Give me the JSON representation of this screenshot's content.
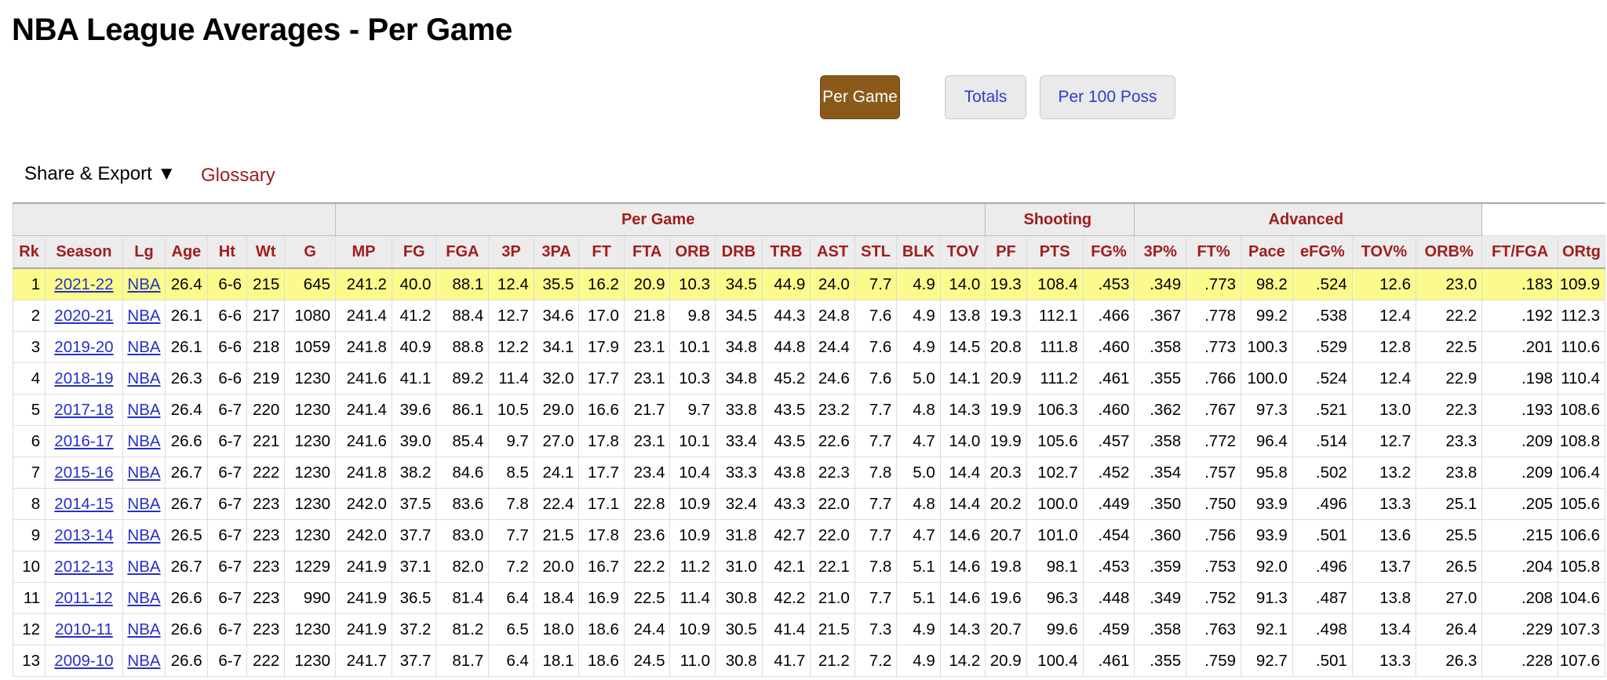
{
  "page": {
    "title": "NBA League Averages - Per Game"
  },
  "view_switch": {
    "per_game": "Per Game",
    "totals": "Totals",
    "per_100": "Per 100 Poss",
    "active": "per_game"
  },
  "toolbar": {
    "share_export": "Share & Export ▼",
    "glossary": "Glossary"
  },
  "colors": {
    "header_text": "#a11d1d",
    "active_button": "#8a5a1b",
    "link": "#2530c8",
    "highlight_row": "#fbfb8c"
  },
  "table": {
    "groups": [
      {
        "label": "",
        "span": 6
      },
      {
        "label": "",
        "span": 1
      },
      {
        "label": "Per Game",
        "span": 14
      },
      {
        "label": "Shooting",
        "span": 3
      },
      {
        "label": "Advanced",
        "span": 6
      }
    ],
    "columns": [
      "Rk",
      "Season",
      "Lg",
      "Age",
      "Ht",
      "Wt",
      "G",
      "MP",
      "FG",
      "FGA",
      "3P",
      "3PA",
      "FT",
      "FTA",
      "ORB",
      "DRB",
      "TRB",
      "AST",
      "STL",
      "BLK",
      "TOV",
      "PF",
      "PTS",
      "FG%",
      "3P%",
      "FT%",
      "Pace",
      "eFG%",
      "TOV%",
      "ORB%",
      "FT/FGA",
      "ORtg"
    ],
    "rows": [
      [
        "1",
        "2021-22",
        "NBA",
        "26.4",
        "6-6",
        "215",
        "645",
        "241.2",
        "40.0",
        "88.1",
        "12.4",
        "35.5",
        "16.2",
        "20.9",
        "10.3",
        "34.5",
        "44.9",
        "24.0",
        "7.7",
        "4.9",
        "14.0",
        "19.3",
        "108.4",
        ".453",
        ".349",
        ".773",
        "98.2",
        ".524",
        "12.6",
        "23.0",
        ".183",
        "109.9"
      ],
      [
        "2",
        "2020-21",
        "NBA",
        "26.1",
        "6-6",
        "217",
        "1080",
        "241.4",
        "41.2",
        "88.4",
        "12.7",
        "34.6",
        "17.0",
        "21.8",
        "9.8",
        "34.5",
        "44.3",
        "24.8",
        "7.6",
        "4.9",
        "13.8",
        "19.3",
        "112.1",
        ".466",
        ".367",
        ".778",
        "99.2",
        ".538",
        "12.4",
        "22.2",
        ".192",
        "112.3"
      ],
      [
        "3",
        "2019-20",
        "NBA",
        "26.1",
        "6-6",
        "218",
        "1059",
        "241.8",
        "40.9",
        "88.8",
        "12.2",
        "34.1",
        "17.9",
        "23.1",
        "10.1",
        "34.8",
        "44.8",
        "24.4",
        "7.6",
        "4.9",
        "14.5",
        "20.8",
        "111.8",
        ".460",
        ".358",
        ".773",
        "100.3",
        ".529",
        "12.8",
        "22.5",
        ".201",
        "110.6"
      ],
      [
        "4",
        "2018-19",
        "NBA",
        "26.3",
        "6-6",
        "219",
        "1230",
        "241.6",
        "41.1",
        "89.2",
        "11.4",
        "32.0",
        "17.7",
        "23.1",
        "10.3",
        "34.8",
        "45.2",
        "24.6",
        "7.6",
        "5.0",
        "14.1",
        "20.9",
        "111.2",
        ".461",
        ".355",
        ".766",
        "100.0",
        ".524",
        "12.4",
        "22.9",
        ".198",
        "110.4"
      ],
      [
        "5",
        "2017-18",
        "NBA",
        "26.4",
        "6-7",
        "220",
        "1230",
        "241.4",
        "39.6",
        "86.1",
        "10.5",
        "29.0",
        "16.6",
        "21.7",
        "9.7",
        "33.8",
        "43.5",
        "23.2",
        "7.7",
        "4.8",
        "14.3",
        "19.9",
        "106.3",
        ".460",
        ".362",
        ".767",
        "97.3",
        ".521",
        "13.0",
        "22.3",
        ".193",
        "108.6"
      ],
      [
        "6",
        "2016-17",
        "NBA",
        "26.6",
        "6-7",
        "221",
        "1230",
        "241.6",
        "39.0",
        "85.4",
        "9.7",
        "27.0",
        "17.8",
        "23.1",
        "10.1",
        "33.4",
        "43.5",
        "22.6",
        "7.7",
        "4.7",
        "14.0",
        "19.9",
        "105.6",
        ".457",
        ".358",
        ".772",
        "96.4",
        ".514",
        "12.7",
        "23.3",
        ".209",
        "108.8"
      ],
      [
        "7",
        "2015-16",
        "NBA",
        "26.7",
        "6-7",
        "222",
        "1230",
        "241.8",
        "38.2",
        "84.6",
        "8.5",
        "24.1",
        "17.7",
        "23.4",
        "10.4",
        "33.3",
        "43.8",
        "22.3",
        "7.8",
        "5.0",
        "14.4",
        "20.3",
        "102.7",
        ".452",
        ".354",
        ".757",
        "95.8",
        ".502",
        "13.2",
        "23.8",
        ".209",
        "106.4"
      ],
      [
        "8",
        "2014-15",
        "NBA",
        "26.7",
        "6-7",
        "223",
        "1230",
        "242.0",
        "37.5",
        "83.6",
        "7.8",
        "22.4",
        "17.1",
        "22.8",
        "10.9",
        "32.4",
        "43.3",
        "22.0",
        "7.7",
        "4.8",
        "14.4",
        "20.2",
        "100.0",
        ".449",
        ".350",
        ".750",
        "93.9",
        ".496",
        "13.3",
        "25.1",
        ".205",
        "105.6"
      ],
      [
        "9",
        "2013-14",
        "NBA",
        "26.5",
        "6-7",
        "223",
        "1230",
        "242.0",
        "37.7",
        "83.0",
        "7.7",
        "21.5",
        "17.8",
        "23.6",
        "10.9",
        "31.8",
        "42.7",
        "22.0",
        "7.7",
        "4.7",
        "14.6",
        "20.7",
        "101.0",
        ".454",
        ".360",
        ".756",
        "93.9",
        ".501",
        "13.6",
        "25.5",
        ".215",
        "106.6"
      ],
      [
        "10",
        "2012-13",
        "NBA",
        "26.7",
        "6-7",
        "223",
        "1229",
        "241.9",
        "37.1",
        "82.0",
        "7.2",
        "20.0",
        "16.7",
        "22.2",
        "11.2",
        "31.0",
        "42.1",
        "22.1",
        "7.8",
        "5.1",
        "14.6",
        "19.8",
        "98.1",
        ".453",
        ".359",
        ".753",
        "92.0",
        ".496",
        "13.7",
        "26.5",
        ".204",
        "105.8"
      ],
      [
        "11",
        "2011-12",
        "NBA",
        "26.6",
        "6-7",
        "223",
        "990",
        "241.9",
        "36.5",
        "81.4",
        "6.4",
        "18.4",
        "16.9",
        "22.5",
        "11.4",
        "30.8",
        "42.2",
        "21.0",
        "7.7",
        "5.1",
        "14.6",
        "19.6",
        "96.3",
        ".448",
        ".349",
        ".752",
        "91.3",
        ".487",
        "13.8",
        "27.0",
        ".208",
        "104.6"
      ],
      [
        "12",
        "2010-11",
        "NBA",
        "26.6",
        "6-7",
        "223",
        "1230",
        "241.9",
        "37.2",
        "81.2",
        "6.5",
        "18.0",
        "18.6",
        "24.4",
        "10.9",
        "30.5",
        "41.4",
        "21.5",
        "7.3",
        "4.9",
        "14.3",
        "20.7",
        "99.6",
        ".459",
        ".358",
        ".763",
        "92.1",
        ".498",
        "13.4",
        "26.4",
        ".229",
        "107.3"
      ],
      [
        "13",
        "2009-10",
        "NBA",
        "26.6",
        "6-7",
        "222",
        "1230",
        "241.7",
        "37.7",
        "81.7",
        "6.4",
        "18.1",
        "18.6",
        "24.5",
        "11.0",
        "30.8",
        "41.7",
        "21.2",
        "7.2",
        "4.9",
        "14.2",
        "20.9",
        "100.4",
        ".461",
        ".355",
        ".759",
        "92.7",
        ".501",
        "13.3",
        "26.3",
        ".228",
        "107.6"
      ]
    ]
  }
}
